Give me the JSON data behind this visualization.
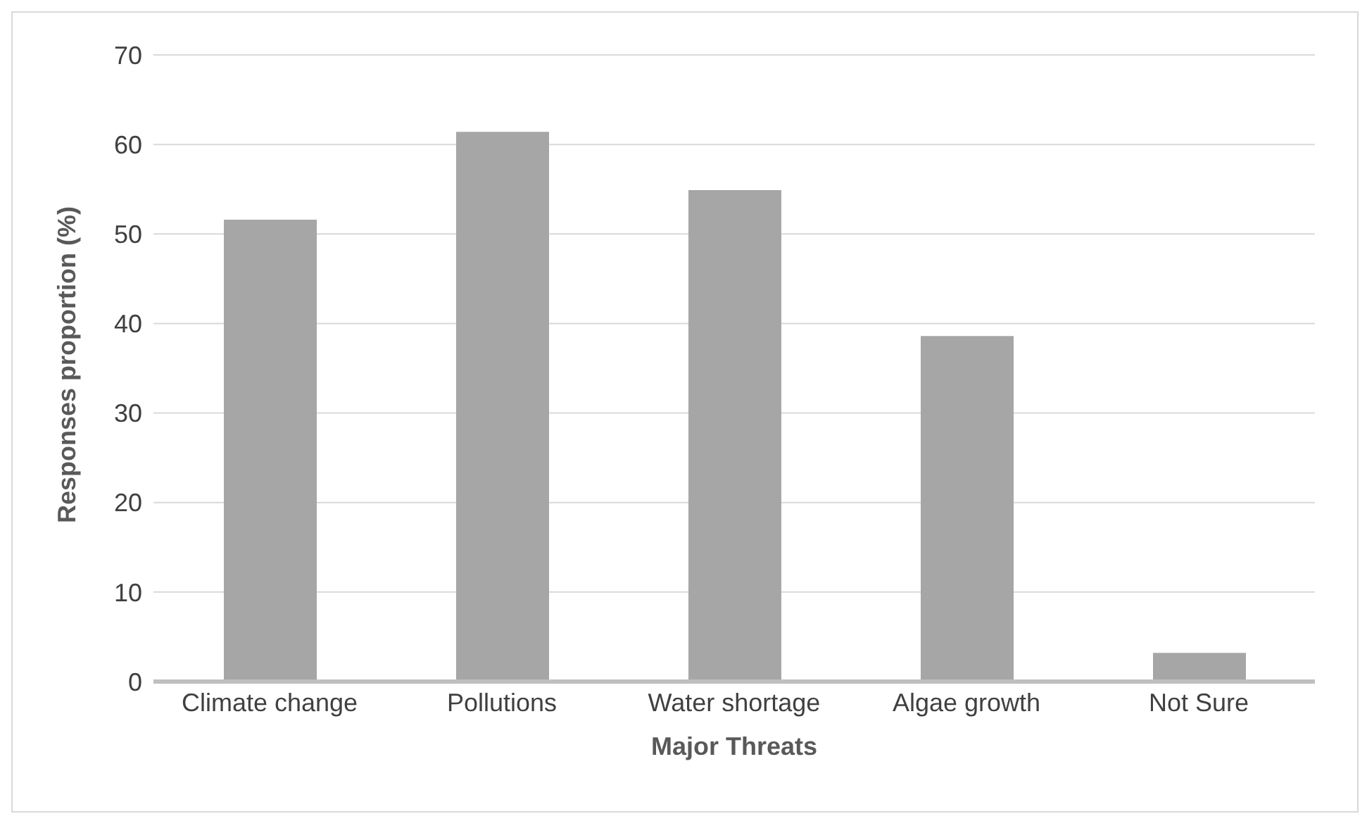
{
  "chart_data": {
    "type": "bar",
    "xlabel": "Major Threats",
    "ylabel": "Responses proportion  (%)",
    "categories": [
      "Climate change",
      "Pollutions",
      "Water shortage",
      "Algae growth",
      "Not Sure"
    ],
    "values": [
      51.6,
      61.4,
      54.9,
      38.6,
      3.2
    ],
    "color": "#a6a6a6",
    "ylim": [
      0,
      70
    ],
    "yticks": [
      0,
      10,
      20,
      30,
      40,
      50,
      60,
      70
    ],
    "grid": "y"
  }
}
